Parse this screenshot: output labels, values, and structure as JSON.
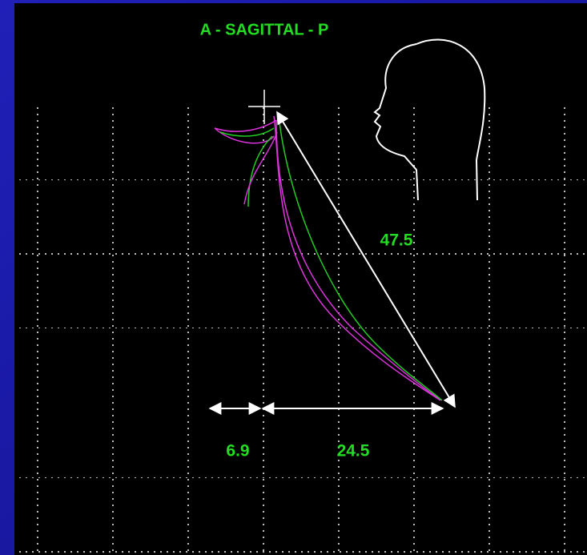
{
  "header": {
    "title": "A - SAGITTAL - P"
  },
  "labels": {
    "diagonal": "47.5",
    "left_span": "6.9",
    "right_span": "24.5"
  }
}
